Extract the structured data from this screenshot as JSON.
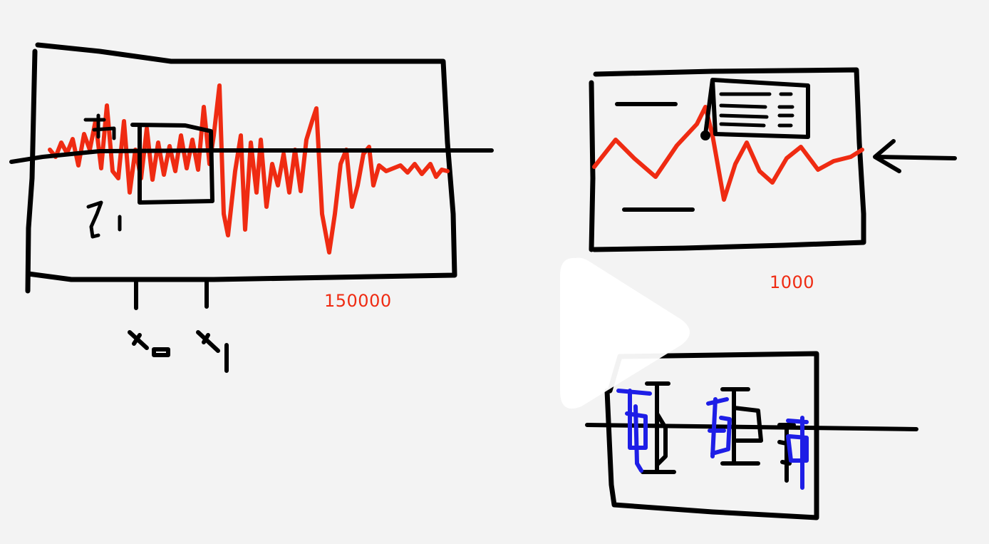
{
  "sketch": {
    "large_plot_count": "150000",
    "small_plot_count": "1000"
  },
  "colors": {
    "background": "#f3f3f3",
    "ink": "#000000",
    "signal": "#ef2b12",
    "annotation": "#1e1ee6",
    "overlay": "#ffffff"
  },
  "icons": [
    "play-icon",
    "arrow-left-icon"
  ]
}
